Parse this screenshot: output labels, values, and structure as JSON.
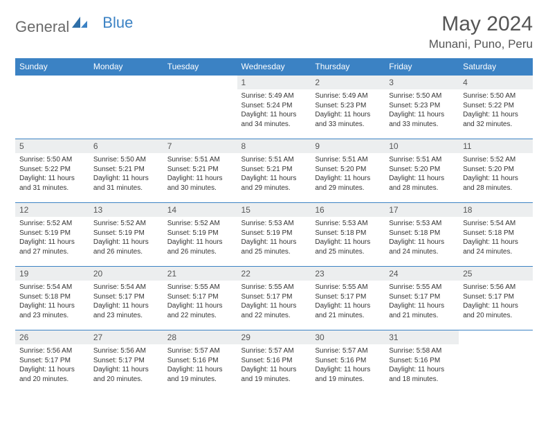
{
  "brand": {
    "part1": "General",
    "part2": "Blue"
  },
  "title": "May 2024",
  "location": "Munani, Puno, Peru",
  "colors": {
    "header_bg": "#3b82c4",
    "header_text": "#ffffff",
    "daynum_bg": "#eceeef",
    "border": "#3b82c4",
    "body_text": "#333333",
    "brand_gray": "#6a6a6a",
    "brand_blue": "#3b82c4"
  },
  "weekdays": [
    "Sunday",
    "Monday",
    "Tuesday",
    "Wednesday",
    "Thursday",
    "Friday",
    "Saturday"
  ],
  "layout": {
    "first_weekday_index": 3,
    "days_in_month": 31
  },
  "days": {
    "1": {
      "sunrise": "5:49 AM",
      "sunset": "5:24 PM",
      "daylight": "11 hours and 34 minutes."
    },
    "2": {
      "sunrise": "5:49 AM",
      "sunset": "5:23 PM",
      "daylight": "11 hours and 33 minutes."
    },
    "3": {
      "sunrise": "5:50 AM",
      "sunset": "5:23 PM",
      "daylight": "11 hours and 33 minutes."
    },
    "4": {
      "sunrise": "5:50 AM",
      "sunset": "5:22 PM",
      "daylight": "11 hours and 32 minutes."
    },
    "5": {
      "sunrise": "5:50 AM",
      "sunset": "5:22 PM",
      "daylight": "11 hours and 31 minutes."
    },
    "6": {
      "sunrise": "5:50 AM",
      "sunset": "5:21 PM",
      "daylight": "11 hours and 31 minutes."
    },
    "7": {
      "sunrise": "5:51 AM",
      "sunset": "5:21 PM",
      "daylight": "11 hours and 30 minutes."
    },
    "8": {
      "sunrise": "5:51 AM",
      "sunset": "5:21 PM",
      "daylight": "11 hours and 29 minutes."
    },
    "9": {
      "sunrise": "5:51 AM",
      "sunset": "5:20 PM",
      "daylight": "11 hours and 29 minutes."
    },
    "10": {
      "sunrise": "5:51 AM",
      "sunset": "5:20 PM",
      "daylight": "11 hours and 28 minutes."
    },
    "11": {
      "sunrise": "5:52 AM",
      "sunset": "5:20 PM",
      "daylight": "11 hours and 28 minutes."
    },
    "12": {
      "sunrise": "5:52 AM",
      "sunset": "5:19 PM",
      "daylight": "11 hours and 27 minutes."
    },
    "13": {
      "sunrise": "5:52 AM",
      "sunset": "5:19 PM",
      "daylight": "11 hours and 26 minutes."
    },
    "14": {
      "sunrise": "5:52 AM",
      "sunset": "5:19 PM",
      "daylight": "11 hours and 26 minutes."
    },
    "15": {
      "sunrise": "5:53 AM",
      "sunset": "5:19 PM",
      "daylight": "11 hours and 25 minutes."
    },
    "16": {
      "sunrise": "5:53 AM",
      "sunset": "5:18 PM",
      "daylight": "11 hours and 25 minutes."
    },
    "17": {
      "sunrise": "5:53 AM",
      "sunset": "5:18 PM",
      "daylight": "11 hours and 24 minutes."
    },
    "18": {
      "sunrise": "5:54 AM",
      "sunset": "5:18 PM",
      "daylight": "11 hours and 24 minutes."
    },
    "19": {
      "sunrise": "5:54 AM",
      "sunset": "5:18 PM",
      "daylight": "11 hours and 23 minutes."
    },
    "20": {
      "sunrise": "5:54 AM",
      "sunset": "5:17 PM",
      "daylight": "11 hours and 23 minutes."
    },
    "21": {
      "sunrise": "5:55 AM",
      "sunset": "5:17 PM",
      "daylight": "11 hours and 22 minutes."
    },
    "22": {
      "sunrise": "5:55 AM",
      "sunset": "5:17 PM",
      "daylight": "11 hours and 22 minutes."
    },
    "23": {
      "sunrise": "5:55 AM",
      "sunset": "5:17 PM",
      "daylight": "11 hours and 21 minutes."
    },
    "24": {
      "sunrise": "5:55 AM",
      "sunset": "5:17 PM",
      "daylight": "11 hours and 21 minutes."
    },
    "25": {
      "sunrise": "5:56 AM",
      "sunset": "5:17 PM",
      "daylight": "11 hours and 20 minutes."
    },
    "26": {
      "sunrise": "5:56 AM",
      "sunset": "5:17 PM",
      "daylight": "11 hours and 20 minutes."
    },
    "27": {
      "sunrise": "5:56 AM",
      "sunset": "5:17 PM",
      "daylight": "11 hours and 20 minutes."
    },
    "28": {
      "sunrise": "5:57 AM",
      "sunset": "5:16 PM",
      "daylight": "11 hours and 19 minutes."
    },
    "29": {
      "sunrise": "5:57 AM",
      "sunset": "5:16 PM",
      "daylight": "11 hours and 19 minutes."
    },
    "30": {
      "sunrise": "5:57 AM",
      "sunset": "5:16 PM",
      "daylight": "11 hours and 19 minutes."
    },
    "31": {
      "sunrise": "5:58 AM",
      "sunset": "5:16 PM",
      "daylight": "11 hours and 18 minutes."
    }
  }
}
